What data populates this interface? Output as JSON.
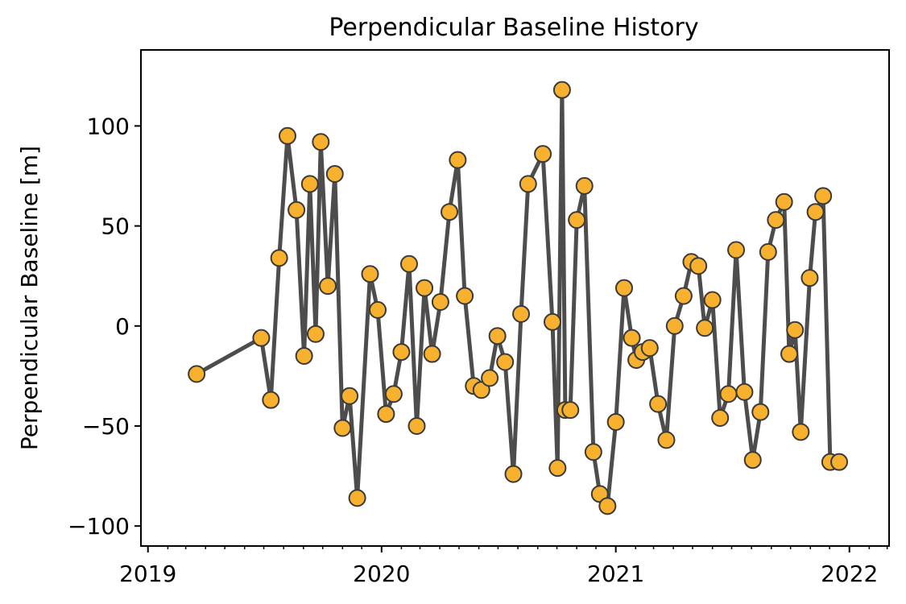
{
  "chart_data": {
    "type": "line",
    "title": "Perpendicular Baseline History",
    "xlabel": "",
    "ylabel": "Perpendicular Baseline [m]",
    "xlim": [
      "2018-12-21",
      "2022-03-04"
    ],
    "ylim": [
      -110,
      138
    ],
    "grid": false,
    "x_ticks": [
      {
        "date": "2019-01-01",
        "label": "2019"
      },
      {
        "date": "2020-01-01",
        "label": "2020"
      },
      {
        "date": "2021-01-01",
        "label": "2021"
      },
      {
        "date": "2022-01-01",
        "label": "2022"
      }
    ],
    "y_ticks": [
      {
        "value": 100,
        "label": "100"
      },
      {
        "value": 50,
        "label": "50"
      },
      {
        "value": 0,
        "label": "0"
      },
      {
        "value": -50,
        "label": "−50"
      },
      {
        "value": -100,
        "label": "−100"
      }
    ],
    "colors": {
      "line": "#4d4d4d",
      "marker_fill": "#f7b12f",
      "marker_edge": "#3a3a3a"
    },
    "series": [
      {
        "x": [
          "2019-03-18",
          "2019-06-27",
          "2019-07-12",
          "2019-07-25",
          "2019-08-07",
          "2019-08-21",
          "2019-09-02",
          "2019-09-11",
          "2019-09-20",
          "2019-09-28",
          "2019-10-09",
          "2019-10-20",
          "2019-11-01",
          "2019-11-12",
          "2019-11-24",
          "2019-12-14",
          "2019-12-26",
          "2020-01-08",
          "2020-01-20",
          "2020-02-01",
          "2020-02-13",
          "2020-02-25",
          "2020-03-08",
          "2020-03-20",
          "2020-04-02",
          "2020-04-16",
          "2020-04-29",
          "2020-05-10",
          "2020-05-24",
          "2020-06-05",
          "2020-06-18",
          "2020-06-30",
          "2020-07-12",
          "2020-07-25",
          "2020-08-06",
          "2020-08-17",
          "2020-09-09",
          "2020-09-24",
          "2020-10-02",
          "2020-10-09",
          "2020-10-14",
          "2020-10-22",
          "2020-11-01",
          "2020-11-13",
          "2020-11-27",
          "2020-12-07",
          "2020-12-19",
          "2021-01-01",
          "2021-01-14",
          "2021-01-26",
          "2021-02-02",
          "2021-02-12",
          "2021-02-23",
          "2021-03-08",
          "2021-03-21",
          "2021-04-03",
          "2021-04-17",
          "2021-04-29",
          "2021-05-10",
          "2021-05-20",
          "2021-06-01",
          "2021-06-13",
          "2021-06-26",
          "2021-07-08",
          "2021-07-21",
          "2021-08-03",
          "2021-08-15",
          "2021-08-27",
          "2021-09-08",
          "2021-09-21",
          "2021-09-29",
          "2021-10-08",
          "2021-10-17",
          "2021-10-31",
          "2021-11-09",
          "2021-11-21",
          "2021-12-02",
          "2021-12-16"
        ],
        "y": [
          -24,
          -6,
          -37,
          34,
          95,
          58,
          -15,
          71,
          -4,
          92,
          20,
          76,
          -51,
          -35,
          -86,
          26,
          8,
          -44,
          -34,
          -13,
          31,
          -50,
          19,
          -14,
          12,
          57,
          83,
          15,
          -30,
          -32,
          -26,
          -5,
          -18,
          -74,
          6,
          71,
          86,
          2,
          -71,
          118,
          -42,
          -42,
          53,
          70,
          -63,
          -84,
          -90,
          -48,
          19,
          -6,
          -17,
          -13,
          -11,
          -39,
          -57,
          0,
          15,
          32,
          30,
          -1,
          13,
          -46,
          -34,
          38,
          -33,
          -67,
          -43,
          37,
          53,
          62,
          -14,
          -2,
          -53,
          24,
          57,
          65,
          -68,
          -68
        ]
      }
    ]
  }
}
